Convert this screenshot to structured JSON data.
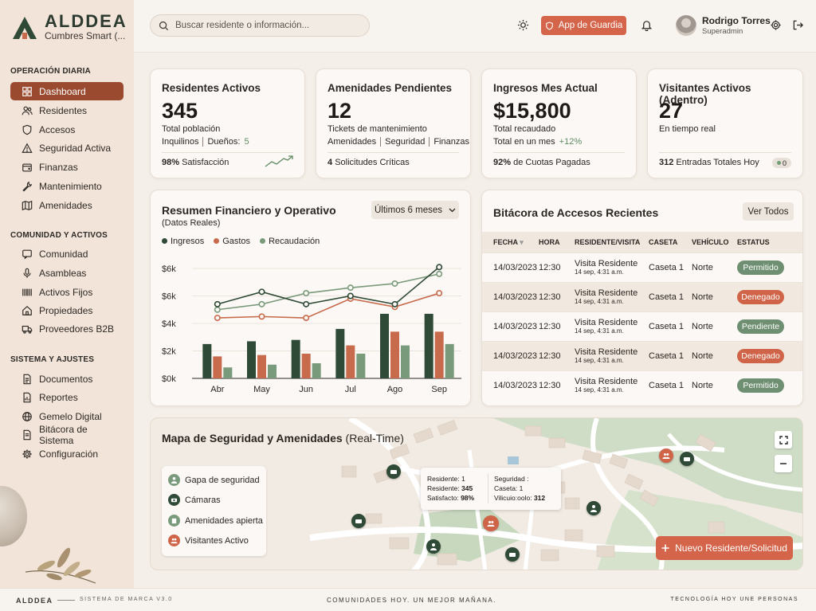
{
  "brand": {
    "name": "ALDDEA",
    "subtitle": "Cumbres Smart (..."
  },
  "sidebar": {
    "sections": [
      {
        "title": "OPERACIÓN DIARIA",
        "items": [
          {
            "label": "Dashboard",
            "icon": "grid-icon",
            "active": true
          },
          {
            "label": "Residentes",
            "icon": "users-icon"
          },
          {
            "label": "Accesos",
            "icon": "shield-icon"
          },
          {
            "label": "Seguridad Activa",
            "icon": "alert-triangle-icon"
          },
          {
            "label": "Finanzas",
            "icon": "wallet-icon"
          },
          {
            "label": "Mantenimiento",
            "icon": "wrench-icon"
          },
          {
            "label": "Amenidades",
            "icon": "map-icon"
          }
        ]
      },
      {
        "title": "COMUNIDAD Y ACTIVOS",
        "items": [
          {
            "label": "Comunidad",
            "icon": "chat-icon"
          },
          {
            "label": "Asambleas",
            "icon": "microphone-icon"
          },
          {
            "label": "Activos Fijos",
            "icon": "barcode-icon"
          },
          {
            "label": "Propiedades",
            "icon": "home-icon"
          },
          {
            "label": "Proveedores B2B",
            "icon": "truck-icon"
          }
        ]
      },
      {
        "title": "SISTEMA Y AJUSTES",
        "items": [
          {
            "label": "Documentos",
            "icon": "document-icon"
          },
          {
            "label": "Reportes",
            "icon": "report-icon"
          },
          {
            "label": "Gemelo Digital",
            "icon": "globe-icon"
          },
          {
            "label": "Bitácora de Sistema",
            "icon": "log-icon"
          },
          {
            "label": "Configuración",
            "icon": "gear-icon"
          }
        ]
      }
    ]
  },
  "topbar": {
    "search_placeholder": "Buscar residente o información...",
    "guard_button": "App de Guardia",
    "user": {
      "name": "Rodrigo Torres",
      "role": "Superadmin"
    }
  },
  "kpis": [
    {
      "title": "Residentes Activos",
      "value": "345",
      "sub": "Total población",
      "sub2a": "Inquilinos",
      "sub2b": "Dueños:",
      "sub2c": "5",
      "foot_bold": "98%",
      "foot": "Satisfacción"
    },
    {
      "title": "Amenidades Pendientes",
      "value": "12",
      "sub": "Tickets de mantenimiento",
      "sub2a": "Amenidades",
      "sub2b": "Seguridad",
      "sub2c": "Finanzas",
      "foot_bold": "4",
      "foot": "Solicitudes Críticas"
    },
    {
      "title": "Ingresos Mes Actual",
      "value": "$15,800",
      "sub": "Total recaudado",
      "sub2a": "Total en un mes",
      "sub2c": "+12%",
      "foot_bold": "92%",
      "foot": "de Cuotas Pagadas"
    },
    {
      "title": "Visitantes Activos (Adentro)",
      "value": "27",
      "sub": "En tiempo real",
      "foot_bold": "312",
      "foot": "Entradas Totales Hoy",
      "badge": "0"
    }
  ],
  "finance": {
    "title": "Resumen Financiero y Operativo",
    "subtitle": "(Datos Reales)",
    "range": "Últimos 6 meses"
  },
  "chart_data": {
    "type": "bar",
    "categories": [
      "Abr",
      "May",
      "Jun",
      "Jul",
      "Ago",
      "Sep"
    ],
    "y_ticks": [
      "$0k",
      "$2k",
      "$4k",
      "$6k",
      "$6k"
    ],
    "ylim": [
      0,
      8
    ],
    "series": [
      {
        "name": "Ingresos",
        "color": "#2f4a36",
        "bars": [
          2.5,
          2.7,
          2.8,
          3.6,
          4.7,
          4.7
        ],
        "line": [
          5.4,
          6.3,
          5.4,
          6.0,
          5.4,
          8.1
        ]
      },
      {
        "name": "Gastos",
        "color": "#c86a4c",
        "bars": [
          1.6,
          1.7,
          1.8,
          2.4,
          3.4,
          3.4
        ],
        "line": [
          4.4,
          4.5,
          4.4,
          5.8,
          5.2,
          6.2
        ]
      },
      {
        "name": "Recaudación",
        "color": "#7a9a7c",
        "bars": [
          0.8,
          1.0,
          1.1,
          1.8,
          2.4,
          2.5
        ],
        "line": [
          5.0,
          5.4,
          6.2,
          6.6,
          6.9,
          7.6
        ]
      }
    ]
  },
  "access_log": {
    "title": "Bitácora de Accesos Recientes",
    "view_all": "Ver Todos",
    "headers": [
      "FECHA",
      "HORA",
      "RESIDENTE/VISITA",
      "CASETA",
      "VEHÍCULO",
      "ESTATUS"
    ],
    "rows": [
      {
        "date": "14/03/2023",
        "time": "12:30",
        "name": "Visita Residente",
        "sub": "14 sep, 4:31 a.m.",
        "booth": "Caseta 1",
        "vehicle": "Norte",
        "status": "Permitido",
        "color": "#6f8f72"
      },
      {
        "date": "14/03/2023",
        "time": "12:30",
        "name": "Visita Residente",
        "sub": "14 sep, 4:31 a.m.",
        "booth": "Caseta 1",
        "vehicle": "Norte",
        "status": "Denegado",
        "color": "#cf6448"
      },
      {
        "date": "14/03/2023",
        "time": "12:30",
        "name": "Visita Residente",
        "sub": "14 sep, 4:31 a.m.",
        "booth": "Caseta 1",
        "vehicle": "Norte",
        "status": "Pendiente",
        "color": "#6f8f72"
      },
      {
        "date": "14/03/2023",
        "time": "12:30",
        "name": "Visita Residente",
        "sub": "14 sep, 4:31 a.m.",
        "booth": "Caseta 1",
        "vehicle": "Norte",
        "status": "Denegado",
        "color": "#cf6448"
      },
      {
        "date": "14/03/2023",
        "time": "12:30",
        "name": "Visita Residente",
        "sub": "14 sep, 4:31 a.m.",
        "booth": "Caseta 1",
        "vehicle": "Norte",
        "status": "Permitido",
        "color": "#6f8f72"
      }
    ]
  },
  "map": {
    "title": "Mapa de Seguridad y Amenidades",
    "title_suffix": "(Real-Time)",
    "legend": [
      {
        "label": "Gapa de seguridad",
        "color": "#7a9a7c",
        "icon": "guard-icon"
      },
      {
        "label": "Cámaras",
        "color": "#2f4a36",
        "icon": "camera-icon"
      },
      {
        "label": "Amenidades apierta",
        "color": "#7a9a7c",
        "icon": "building-icon"
      },
      {
        "label": "Visitantes Activo",
        "color": "#cf6448",
        "icon": "visitors-icon"
      }
    ],
    "tooltip": {
      "l1": "Residente: 1",
      "l2k": "Residente:",
      "l2v": "345",
      "l3k": "Satisfacto:",
      "l3v": "98%",
      "r1": "Seguridad :",
      "r2": "Caseta: 1",
      "r3k": "Vilicuio:oolo:",
      "r3v": "312"
    },
    "new_button": "Nuevo Residente/Solicitud"
  },
  "footer": {
    "brand": "ALDDEA",
    "system": "SISTEMA DE MARCA   V3.0",
    "slogan": "COMUNIDADES HOY. UN MEJOR MAÑANA.",
    "tagline": "TECNOLOGÍA HOY UNE PERSONAS"
  }
}
